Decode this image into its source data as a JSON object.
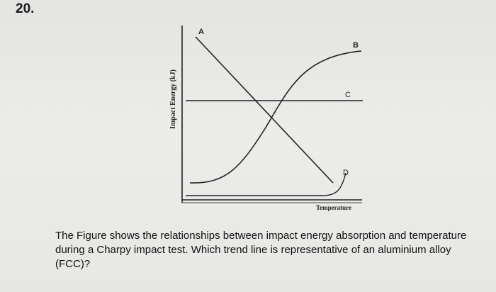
{
  "question_number": "20.",
  "figure": {
    "y_axis_label": "Impact Energy (kJ)",
    "x_axis_label": "Temperature",
    "curve_labels": [
      "A",
      "B",
      "C",
      "D"
    ]
  },
  "question_text": "The Figure shows the relationships between impact energy absorption and temperature during a Charpy impact test. Which trend line is representative of an aluminium alloy (FCC)?"
}
